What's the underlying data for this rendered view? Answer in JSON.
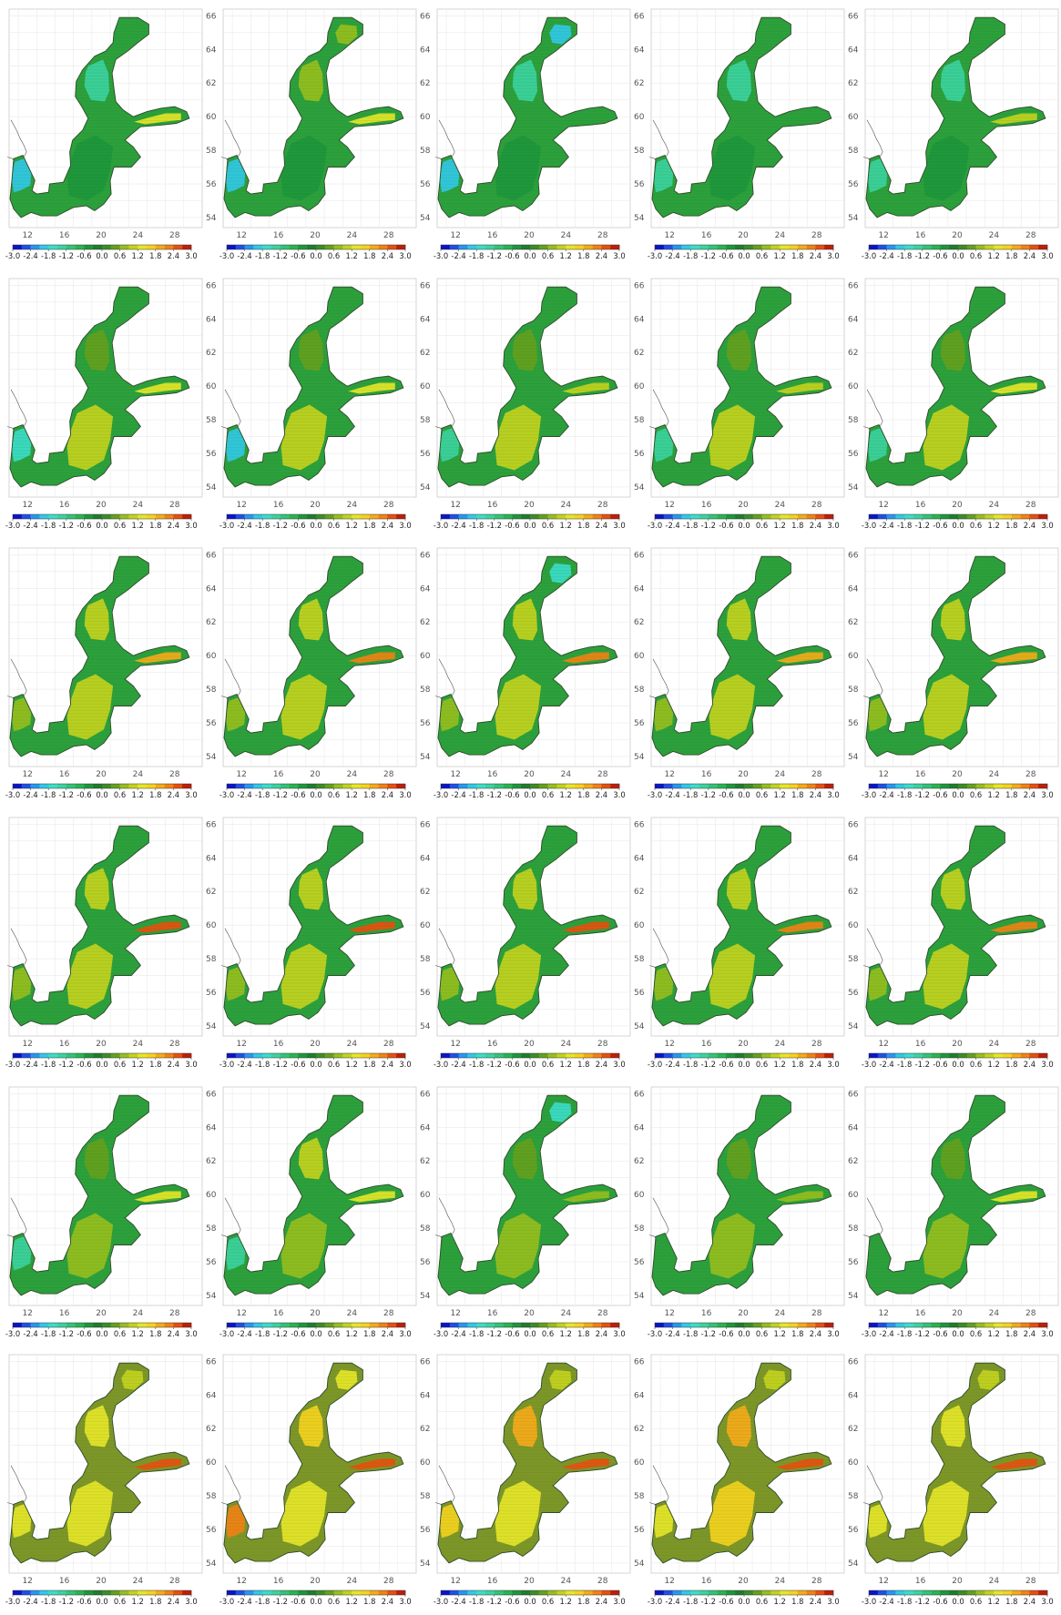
{
  "figure": {
    "columns": 5,
    "rows": 6,
    "lon_ticks": [
      "12",
      "16",
      "20",
      "24",
      "28"
    ],
    "lat_ticks": [
      "66",
      "64",
      "62",
      "60",
      "58",
      "56",
      "54"
    ],
    "colorbar": {
      "min": -3.0,
      "max": 3.0,
      "step": 0.3,
      "tick_labels": [
        "-3.0",
        "-2.4",
        "-1.8",
        "-1.2",
        "-0.6",
        "0.0",
        "0.6",
        "1.2",
        "1.8",
        "2.4",
        "3.0"
      ],
      "palette": [
        "#0a14c8",
        "#1e50e6",
        "#2896f0",
        "#32c8e6",
        "#3cdcc8",
        "#3cd2a0",
        "#32c378",
        "#28b450",
        "#1e963c",
        "#1e7d2d",
        "#3c8c28",
        "#64a01e",
        "#96be1e",
        "#c3d21e",
        "#e6e628",
        "#f5d21e",
        "#f5aa19",
        "#f08214",
        "#e6500f",
        "#be1e0a"
      ]
    },
    "land_color": "#ffffff",
    "coast_color": "#555555"
  },
  "panels": [
    {
      "row": 1,
      "col": 1,
      "base": "#2ca03c",
      "patches": [
        {
          "where": "bothnian-bay",
          "color": "#2ca03c"
        },
        {
          "where": "bothnian-sea",
          "color": "#3cd2a0"
        },
        {
          "where": "gulf-of-finland",
          "color": "#e6e628"
        },
        {
          "where": "kattegat",
          "color": "#32c8e6"
        },
        {
          "where": "central",
          "color": "#1e963c"
        }
      ]
    },
    {
      "row": 1,
      "col": 2,
      "base": "#2ca03c",
      "patches": [
        {
          "where": "bothnian-bay",
          "color": "#96be1e"
        },
        {
          "where": "bothnian-sea",
          "color": "#96be1e"
        },
        {
          "where": "gulf-of-finland",
          "color": "#e6e628"
        },
        {
          "where": "kattegat",
          "color": "#32c8e6"
        },
        {
          "where": "central",
          "color": "#1e963c"
        }
      ]
    },
    {
      "row": 1,
      "col": 3,
      "base": "#2ca03c",
      "patches": [
        {
          "where": "bothnian-bay",
          "color": "#32c8e6"
        },
        {
          "where": "bothnian-sea",
          "color": "#3cd2a0"
        },
        {
          "where": "gulf-of-finland",
          "color": "#2ca03c"
        },
        {
          "where": "kattegat",
          "color": "#32c8e6"
        },
        {
          "where": "central",
          "color": "#1e963c"
        }
      ]
    },
    {
      "row": 1,
      "col": 4,
      "base": "#2ca03c",
      "patches": [
        {
          "where": "bothnian-bay",
          "color": "#2ca03c"
        },
        {
          "where": "bothnian-sea",
          "color": "#3cd2a0"
        },
        {
          "where": "gulf-of-finland",
          "color": "#2ca03c"
        },
        {
          "where": "kattegat",
          "color": "#3cd2a0"
        },
        {
          "where": "central",
          "color": "#1e963c"
        }
      ]
    },
    {
      "row": 1,
      "col": 5,
      "base": "#2ca03c",
      "patches": [
        {
          "where": "bothnian-bay",
          "color": "#2ca03c"
        },
        {
          "where": "bothnian-sea",
          "color": "#3cd2a0"
        },
        {
          "where": "gulf-of-finland",
          "color": "#c3d21e"
        },
        {
          "where": "kattegat",
          "color": "#3cd2a0"
        },
        {
          "where": "central",
          "color": "#1e963c"
        }
      ]
    },
    {
      "row": 2,
      "col": 1,
      "base": "#2ca03c",
      "patches": [
        {
          "where": "bothnian-bay",
          "color": "#2ca03c"
        },
        {
          "where": "bothnian-sea",
          "color": "#64a01e"
        },
        {
          "where": "gulf-of-finland",
          "color": "#e6e628"
        },
        {
          "where": "kattegat",
          "color": "#3cdcc8"
        },
        {
          "where": "central",
          "color": "#c3d21e"
        }
      ]
    },
    {
      "row": 2,
      "col": 2,
      "base": "#2ca03c",
      "patches": [
        {
          "where": "bothnian-bay",
          "color": "#2ca03c"
        },
        {
          "where": "bothnian-sea",
          "color": "#64a01e"
        },
        {
          "where": "gulf-of-finland",
          "color": "#e6e628"
        },
        {
          "where": "kattegat",
          "color": "#32c8e6"
        },
        {
          "where": "central",
          "color": "#c3d21e"
        }
      ]
    },
    {
      "row": 2,
      "col": 3,
      "base": "#2ca03c",
      "patches": [
        {
          "where": "bothnian-bay",
          "color": "#2ca03c"
        },
        {
          "where": "bothnian-sea",
          "color": "#64a01e"
        },
        {
          "where": "gulf-of-finland",
          "color": "#c3d21e"
        },
        {
          "where": "kattegat",
          "color": "#3cd2a0"
        },
        {
          "where": "central",
          "color": "#c3d21e"
        }
      ]
    },
    {
      "row": 2,
      "col": 4,
      "base": "#2ca03c",
      "patches": [
        {
          "where": "bothnian-bay",
          "color": "#2ca03c"
        },
        {
          "where": "bothnian-sea",
          "color": "#64a01e"
        },
        {
          "where": "gulf-of-finland",
          "color": "#c3d21e"
        },
        {
          "where": "kattegat",
          "color": "#3cd2a0"
        },
        {
          "where": "central",
          "color": "#c3d21e"
        }
      ]
    },
    {
      "row": 2,
      "col": 5,
      "base": "#2ca03c",
      "patches": [
        {
          "where": "bothnian-bay",
          "color": "#2ca03c"
        },
        {
          "where": "bothnian-sea",
          "color": "#64a01e"
        },
        {
          "where": "gulf-of-finland",
          "color": "#e6e628"
        },
        {
          "where": "kattegat",
          "color": "#3cd2a0"
        },
        {
          "where": "central",
          "color": "#c3d21e"
        }
      ]
    },
    {
      "row": 3,
      "col": 1,
      "base": "#2ca03c",
      "patches": [
        {
          "where": "bothnian-bay",
          "color": "#2ca03c"
        },
        {
          "where": "bothnian-sea",
          "color": "#c3d21e"
        },
        {
          "where": "gulf-of-finland",
          "color": "#f5aa19"
        },
        {
          "where": "kattegat",
          "color": "#96be1e"
        },
        {
          "where": "central",
          "color": "#c3d21e"
        }
      ]
    },
    {
      "row": 3,
      "col": 2,
      "base": "#2ca03c",
      "patches": [
        {
          "where": "bothnian-bay",
          "color": "#2ca03c"
        },
        {
          "where": "bothnian-sea",
          "color": "#c3d21e"
        },
        {
          "where": "gulf-of-finland",
          "color": "#f08214"
        },
        {
          "where": "kattegat",
          "color": "#96be1e"
        },
        {
          "where": "central",
          "color": "#c3d21e"
        }
      ]
    },
    {
      "row": 3,
      "col": 3,
      "base": "#2ca03c",
      "patches": [
        {
          "where": "bothnian-bay",
          "color": "#3cdcc8"
        },
        {
          "where": "bothnian-sea",
          "color": "#c3d21e"
        },
        {
          "where": "gulf-of-finland",
          "color": "#f08214"
        },
        {
          "where": "kattegat",
          "color": "#96be1e"
        },
        {
          "where": "central",
          "color": "#c3d21e"
        }
      ]
    },
    {
      "row": 3,
      "col": 4,
      "base": "#2ca03c",
      "patches": [
        {
          "where": "bothnian-bay",
          "color": "#2ca03c"
        },
        {
          "where": "bothnian-sea",
          "color": "#c3d21e"
        },
        {
          "where": "gulf-of-finland",
          "color": "#f5aa19"
        },
        {
          "where": "kattegat",
          "color": "#96be1e"
        },
        {
          "where": "central",
          "color": "#c3d21e"
        }
      ]
    },
    {
      "row": 3,
      "col": 5,
      "base": "#2ca03c",
      "patches": [
        {
          "where": "bothnian-bay",
          "color": "#2ca03c"
        },
        {
          "where": "bothnian-sea",
          "color": "#c3d21e"
        },
        {
          "where": "gulf-of-finland",
          "color": "#f5aa19"
        },
        {
          "where": "kattegat",
          "color": "#96be1e"
        },
        {
          "where": "central",
          "color": "#c3d21e"
        }
      ]
    },
    {
      "row": 4,
      "col": 1,
      "base": "#2ca03c",
      "patches": [
        {
          "where": "bothnian-bay",
          "color": "#2ca03c"
        },
        {
          "where": "bothnian-sea",
          "color": "#c3d21e"
        },
        {
          "where": "gulf-of-finland",
          "color": "#e6500f"
        },
        {
          "where": "kattegat",
          "color": "#96be1e"
        },
        {
          "where": "central",
          "color": "#c3d21e"
        }
      ]
    },
    {
      "row": 4,
      "col": 2,
      "base": "#2ca03c",
      "patches": [
        {
          "where": "bothnian-bay",
          "color": "#2ca03c"
        },
        {
          "where": "bothnian-sea",
          "color": "#c3d21e"
        },
        {
          "where": "gulf-of-finland",
          "color": "#e6500f"
        },
        {
          "where": "kattegat",
          "color": "#96be1e"
        },
        {
          "where": "central",
          "color": "#c3d21e"
        }
      ]
    },
    {
      "row": 4,
      "col": 3,
      "base": "#2ca03c",
      "patches": [
        {
          "where": "bothnian-bay",
          "color": "#2ca03c"
        },
        {
          "where": "bothnian-sea",
          "color": "#c3d21e"
        },
        {
          "where": "gulf-of-finland",
          "color": "#e6500f"
        },
        {
          "where": "kattegat",
          "color": "#96be1e"
        },
        {
          "where": "central",
          "color": "#c3d21e"
        }
      ]
    },
    {
      "row": 4,
      "col": 4,
      "base": "#2ca03c",
      "patches": [
        {
          "where": "bothnian-bay",
          "color": "#2ca03c"
        },
        {
          "where": "bothnian-sea",
          "color": "#c3d21e"
        },
        {
          "where": "gulf-of-finland",
          "color": "#f08214"
        },
        {
          "where": "kattegat",
          "color": "#96be1e"
        },
        {
          "where": "central",
          "color": "#c3d21e"
        }
      ]
    },
    {
      "row": 4,
      "col": 5,
      "base": "#2ca03c",
      "patches": [
        {
          "where": "bothnian-bay",
          "color": "#2ca03c"
        },
        {
          "where": "bothnian-sea",
          "color": "#c3d21e"
        },
        {
          "where": "gulf-of-finland",
          "color": "#f08214"
        },
        {
          "where": "kattegat",
          "color": "#96be1e"
        },
        {
          "where": "central",
          "color": "#c3d21e"
        }
      ]
    },
    {
      "row": 5,
      "col": 1,
      "base": "#2ca03c",
      "patches": [
        {
          "where": "bothnian-bay",
          "color": "#2ca03c"
        },
        {
          "where": "bothnian-sea",
          "color": "#64a01e"
        },
        {
          "where": "gulf-of-finland",
          "color": "#e6e628"
        },
        {
          "where": "kattegat",
          "color": "#3cd2a0"
        },
        {
          "where": "central",
          "color": "#96be1e"
        }
      ]
    },
    {
      "row": 5,
      "col": 2,
      "base": "#2ca03c",
      "patches": [
        {
          "where": "bothnian-bay",
          "color": "#2ca03c"
        },
        {
          "where": "bothnian-sea",
          "color": "#c3d21e"
        },
        {
          "where": "gulf-of-finland",
          "color": "#e6e628"
        },
        {
          "where": "kattegat",
          "color": "#3cd2a0"
        },
        {
          "where": "central",
          "color": "#96be1e"
        }
      ]
    },
    {
      "row": 5,
      "col": 3,
      "base": "#2ca03c",
      "patches": [
        {
          "where": "bothnian-bay",
          "color": "#3cdcc8"
        },
        {
          "where": "bothnian-sea",
          "color": "#64a01e"
        },
        {
          "where": "gulf-of-finland",
          "color": "#96be1e"
        },
        {
          "where": "kattegat",
          "color": "#2ca03c"
        },
        {
          "where": "central",
          "color": "#96be1e"
        }
      ]
    },
    {
      "row": 5,
      "col": 4,
      "base": "#2ca03c",
      "patches": [
        {
          "where": "bothnian-bay",
          "color": "#2ca03c"
        },
        {
          "where": "bothnian-sea",
          "color": "#64a01e"
        },
        {
          "where": "gulf-of-finland",
          "color": "#96be1e"
        },
        {
          "where": "kattegat",
          "color": "#2ca03c"
        },
        {
          "where": "central",
          "color": "#96be1e"
        }
      ]
    },
    {
      "row": 5,
      "col": 5,
      "base": "#2ca03c",
      "patches": [
        {
          "where": "bothnian-bay",
          "color": "#2ca03c"
        },
        {
          "where": "bothnian-sea",
          "color": "#64a01e"
        },
        {
          "where": "gulf-of-finland",
          "color": "#e6e628"
        },
        {
          "where": "kattegat",
          "color": "#2ca03c"
        },
        {
          "where": "central",
          "color": "#96be1e"
        }
      ]
    },
    {
      "row": 6,
      "col": 1,
      "base": "#7d9628",
      "patches": [
        {
          "where": "bothnian-bay",
          "color": "#c3d21e"
        },
        {
          "where": "bothnian-sea",
          "color": "#e6e628"
        },
        {
          "where": "gulf-of-finland",
          "color": "#e6500f"
        },
        {
          "where": "kattegat",
          "color": "#e6e628"
        },
        {
          "where": "central",
          "color": "#e6e628"
        }
      ]
    },
    {
      "row": 6,
      "col": 2,
      "base": "#7d9628",
      "patches": [
        {
          "where": "bothnian-bay",
          "color": "#e6e628"
        },
        {
          "where": "bothnian-sea",
          "color": "#f5d21e"
        },
        {
          "where": "gulf-of-finland",
          "color": "#e6500f"
        },
        {
          "where": "kattegat",
          "color": "#f08214"
        },
        {
          "where": "central",
          "color": "#e6e628"
        }
      ]
    },
    {
      "row": 6,
      "col": 3,
      "base": "#7d9628",
      "patches": [
        {
          "where": "bothnian-bay",
          "color": "#c3d21e"
        },
        {
          "where": "bothnian-sea",
          "color": "#f5aa19"
        },
        {
          "where": "gulf-of-finland",
          "color": "#e6500f"
        },
        {
          "where": "kattegat",
          "color": "#f5d21e"
        },
        {
          "where": "central",
          "color": "#e6e628"
        }
      ]
    },
    {
      "row": 6,
      "col": 4,
      "base": "#7d9628",
      "patches": [
        {
          "where": "bothnian-bay",
          "color": "#c3d21e"
        },
        {
          "where": "bothnian-sea",
          "color": "#f5aa19"
        },
        {
          "where": "gulf-of-finland",
          "color": "#e6500f"
        },
        {
          "where": "kattegat",
          "color": "#e6e628"
        },
        {
          "where": "central",
          "color": "#f5d21e"
        }
      ]
    },
    {
      "row": 6,
      "col": 5,
      "base": "#7d9628",
      "patches": [
        {
          "where": "bothnian-bay",
          "color": "#c3d21e"
        },
        {
          "where": "bothnian-sea",
          "color": "#e6e628"
        },
        {
          "where": "gulf-of-finland",
          "color": "#e6500f"
        },
        {
          "where": "kattegat",
          "color": "#e6e628"
        },
        {
          "where": "central",
          "color": "#e6e628"
        }
      ]
    }
  ]
}
